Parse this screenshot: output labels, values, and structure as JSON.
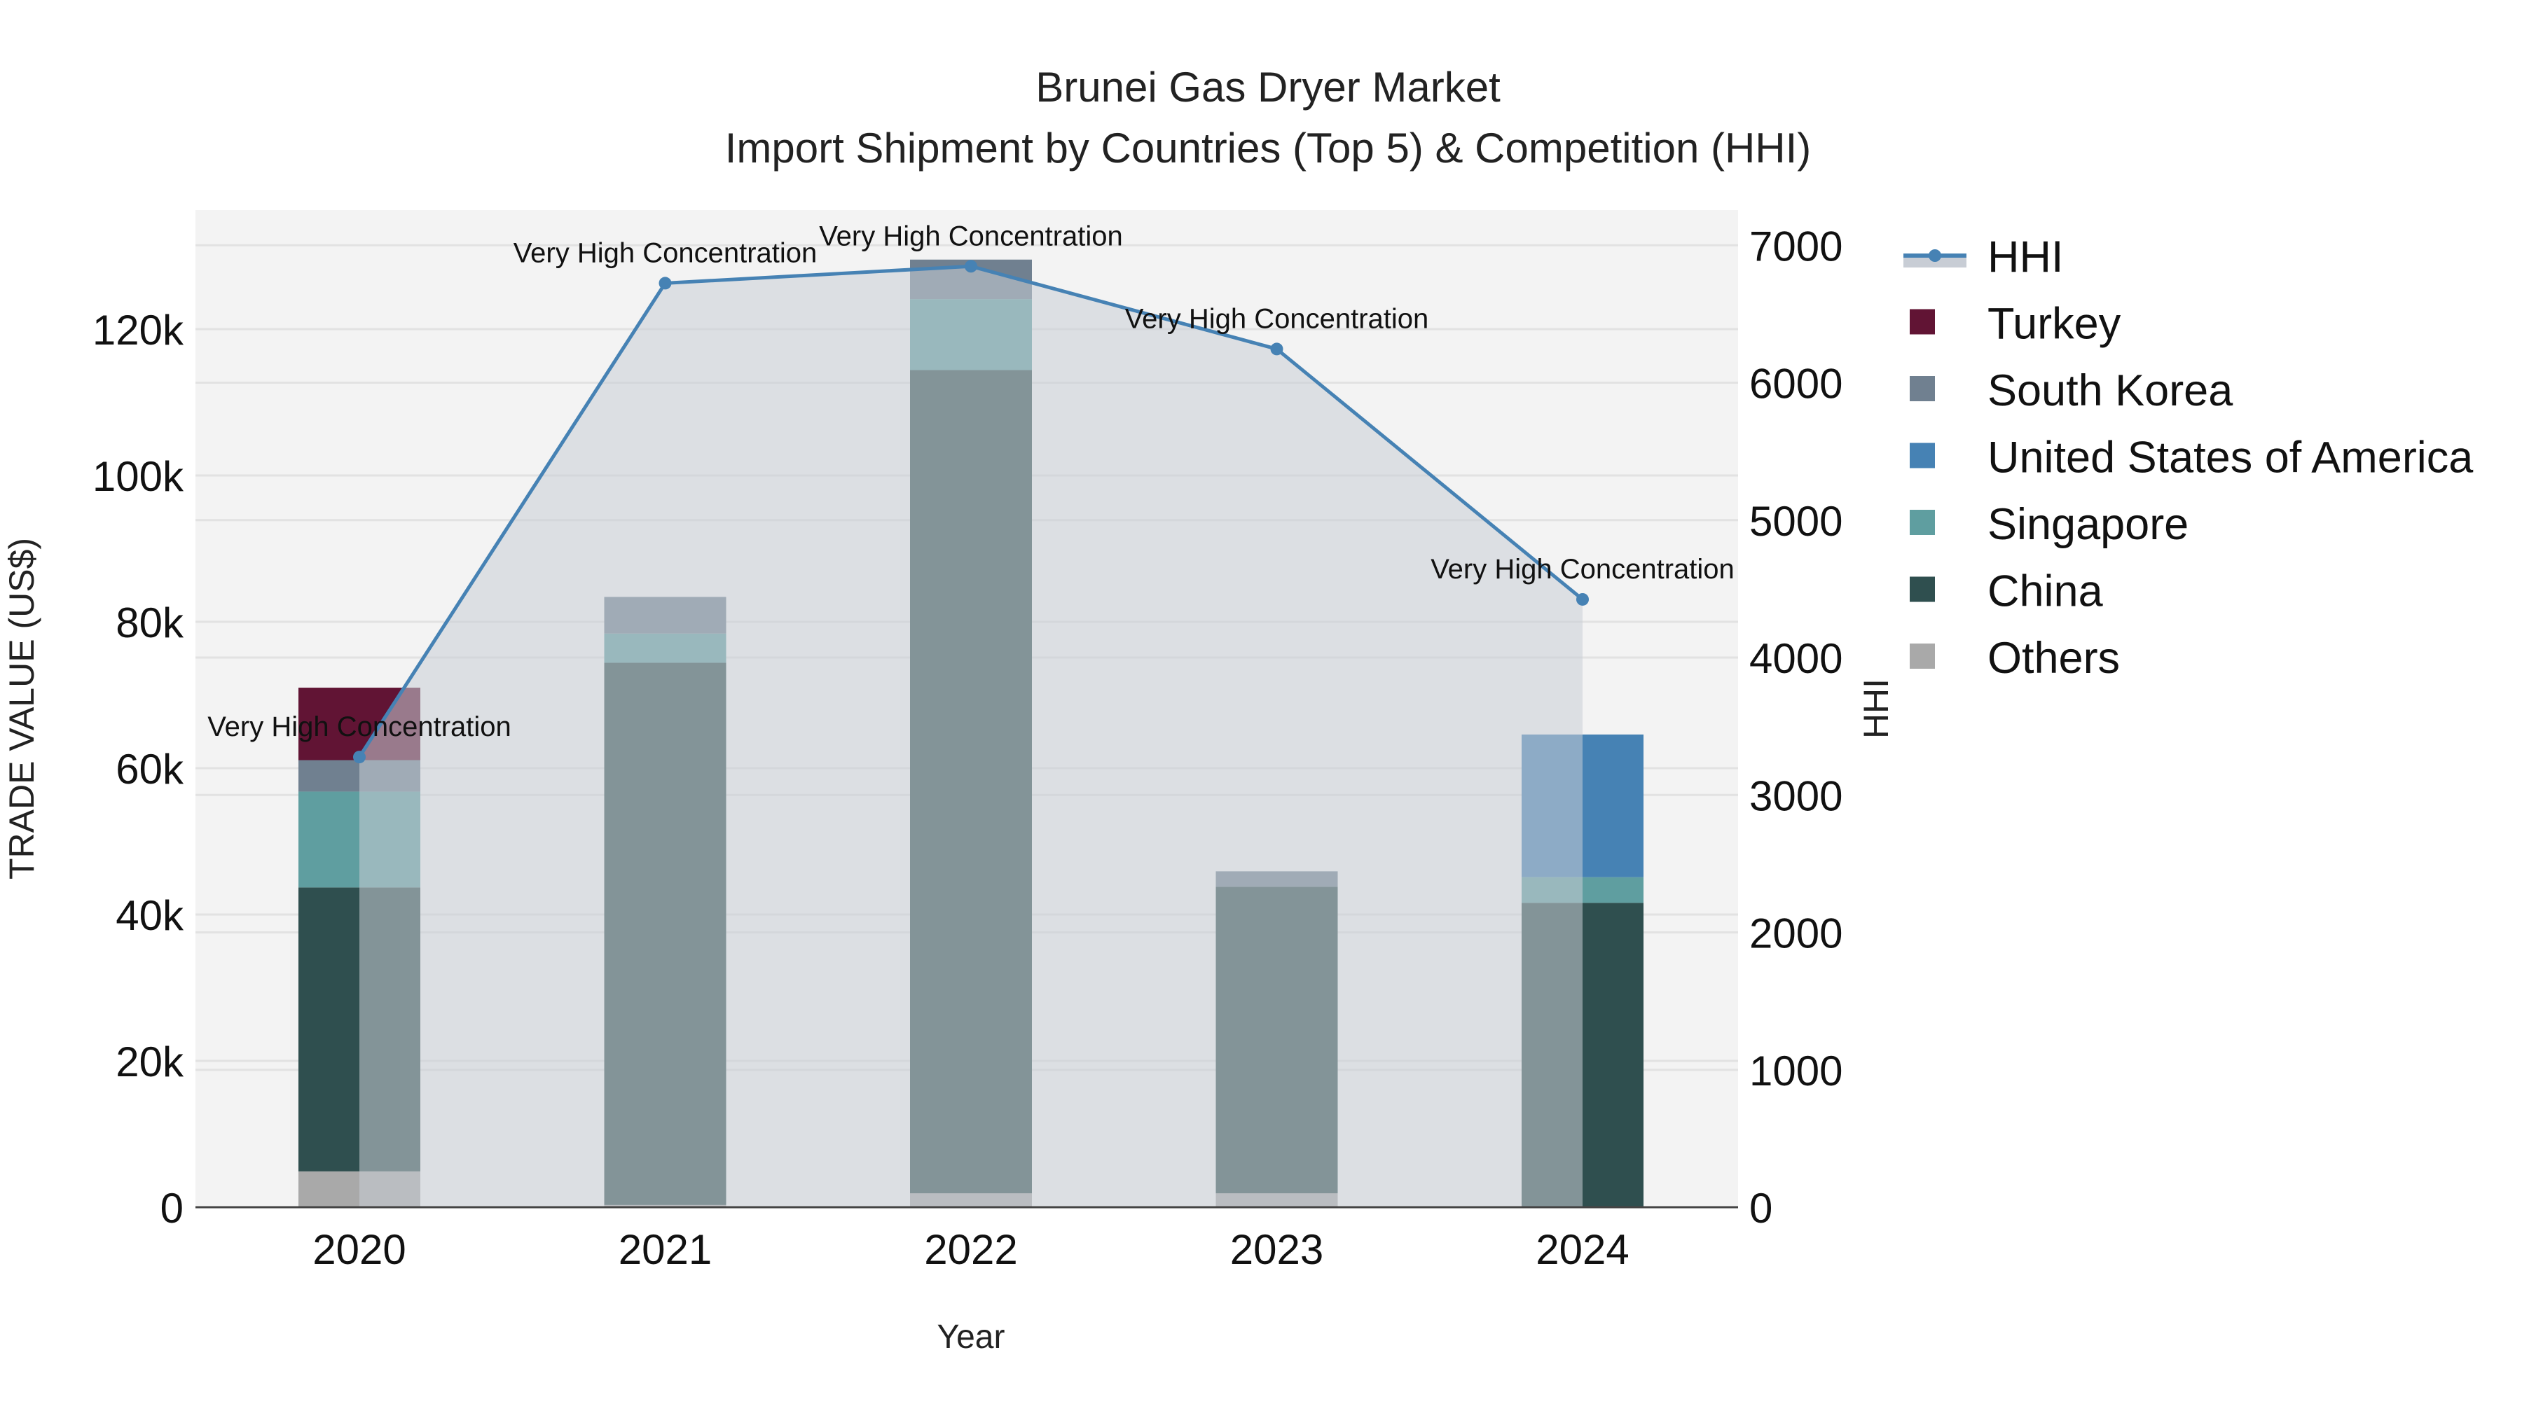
{
  "title": {
    "line1": "Brunei Gas Dryer Market",
    "line2": "Import Shipment by Countries (Top 5) & Competition (HHI)"
  },
  "axes": {
    "x_title": "Year",
    "y_left_title": "TRADE VALUE (US$)",
    "y_right_title": "HHI",
    "y_left_ticks": [
      "0",
      "20k",
      "40k",
      "60k",
      "80k",
      "100k",
      "120k"
    ],
    "y_right_ticks": [
      "0",
      "1000",
      "2000",
      "3000",
      "4000",
      "5000",
      "6000",
      "7000"
    ]
  },
  "colors": {
    "plot_bg": "#f3f3f3",
    "grid": "#e2e2e2",
    "hhi_line": "#4682b4",
    "hhi_fill": "#c8cdd5",
    "Turkey": "#611434",
    "South Korea": "#708090",
    "United States of America": "#4682b4",
    "Singapore": "#5f9ea0",
    "China": "#2f4f4f",
    "Others": "#a9a9a9"
  },
  "legend": [
    {
      "label": "HHI",
      "type": "line"
    },
    {
      "label": "Turkey",
      "type": "box"
    },
    {
      "label": "South Korea",
      "type": "box"
    },
    {
      "label": "United States of America",
      "type": "box"
    },
    {
      "label": "Singapore",
      "type": "box"
    },
    {
      "label": "China",
      "type": "box"
    },
    {
      "label": "Others",
      "type": "box"
    }
  ],
  "chart_data": {
    "type": "bar",
    "title": "Brunei Gas Dryer Market — Import Shipment by Countries (Top 5) & Competition (HHI)",
    "xlabel": "Year",
    "ylabel": "TRADE VALUE (US$)",
    "y2label": "HHI",
    "categories": [
      "2020",
      "2021",
      "2022",
      "2023",
      "2024"
    ],
    "stacked": true,
    "ylim": [
      0,
      136000
    ],
    "y2lim": [
      0,
      7250
    ],
    "series": [
      {
        "name": "Others",
        "values": [
          4900,
          300,
          1900,
          1900,
          0
        ]
      },
      {
        "name": "China",
        "values": [
          38800,
          74100,
          112500,
          41900,
          41600
        ]
      },
      {
        "name": "Singapore",
        "values": [
          13100,
          4000,
          9700,
          0,
          3500
        ]
      },
      {
        "name": "United States of America",
        "values": [
          0,
          0,
          0,
          0,
          19500
        ]
      },
      {
        "name": "South Korea",
        "values": [
          4300,
          5000,
          5400,
          2100,
          0
        ]
      },
      {
        "name": "Turkey",
        "values": [
          9900,
          0,
          0,
          0,
          0
        ]
      }
    ],
    "line_series": {
      "name": "HHI",
      "axis": "right",
      "values": [
        3276,
        6724,
        6847,
        6245,
        4423
      ],
      "annotations": [
        "Very High Concentration",
        "Very High Concentration",
        "Very High Concentration",
        "Very High Concentration",
        "Very High Concentration"
      ]
    },
    "grid": true,
    "legend_position": "right"
  }
}
